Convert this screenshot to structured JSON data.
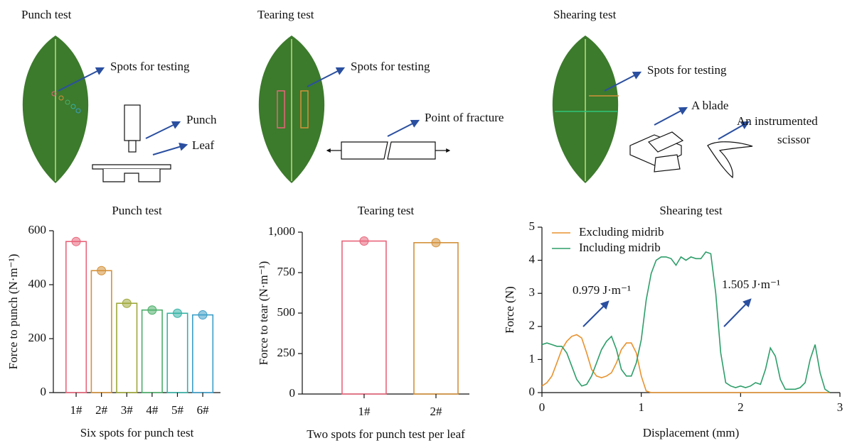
{
  "panels": [
    {
      "title": "Punch test",
      "labels": [
        "Spots for testing",
        "Punch",
        "Leaf"
      ]
    },
    {
      "title": "Tearing test",
      "labels": [
        "Spots for testing",
        "Point of fracture"
      ]
    },
    {
      "title": "Shearing test",
      "labels": [
        "Spots for testing",
        "A blade",
        "An instrumented",
        "scissor"
      ]
    }
  ],
  "chart_data": [
    {
      "type": "bar",
      "title": "Punch test",
      "xlabel": "Six spots for punch test",
      "ylabel": "Force to punch (N·m⁻¹)",
      "categories": [
        "1#",
        "2#",
        "3#",
        "4#",
        "5#",
        "6#"
      ],
      "values": [
        560,
        452,
        331,
        306,
        294,
        288
      ],
      "colors": [
        "#e8647a",
        "#d4913a",
        "#9ea83a",
        "#4cae6a",
        "#35b3a6",
        "#3c9ec8"
      ],
      "ylim": [
        0,
        600
      ],
      "yticks": [
        0,
        200,
        400,
        600
      ]
    },
    {
      "type": "bar",
      "title": "Tearing test",
      "xlabel": "Two spots for punch test per leaf",
      "ylabel": "Force to tear (N·m⁻¹)",
      "categories": [
        "1#",
        "2#"
      ],
      "values": [
        945,
        935
      ],
      "colors": [
        "#e8647a",
        "#d4913a"
      ],
      "ylim": [
        0,
        1000
      ],
      "yticks": [
        0,
        250,
        500,
        750,
        {
          "value": 1000,
          "label": "1,000"
        }
      ]
    },
    {
      "type": "line",
      "title": "Shearing test",
      "xlabel": "Displacement (mm)",
      "ylabel": "Force (N)",
      "legend": "upper left",
      "x": [
        0,
        0.05,
        0.1,
        0.15,
        0.2,
        0.25,
        0.3,
        0.35,
        0.4,
        0.45,
        0.5,
        0.55,
        0.6,
        0.65,
        0.7,
        0.75,
        0.8,
        0.85,
        0.9,
        0.95,
        1,
        1.05,
        1.1,
        1.15,
        1.2,
        1.25,
        1.3,
        1.35,
        1.4,
        1.45,
        1.5,
        1.55,
        1.6,
        1.65,
        1.7,
        1.75,
        1.8,
        1.85,
        1.9,
        1.95,
        2,
        2.05,
        2.1,
        2.15,
        2.2,
        2.25,
        2.3,
        2.35,
        2.4,
        2.45,
        2.5,
        2.55,
        2.6,
        2.65,
        2.7,
        2.75,
        2.8,
        2.85,
        2.9
      ],
      "series": [
        {
          "name": "Excluding midrib",
          "color": "#e8922e",
          "values": [
            0.2,
            0.3,
            0.5,
            0.9,
            1.3,
            1.55,
            1.7,
            1.75,
            1.65,
            1.2,
            0.7,
            0.5,
            0.45,
            0.5,
            0.6,
            0.9,
            1.3,
            1.5,
            1.5,
            1.2,
            0.5,
            0.05,
            0,
            0,
            0,
            0,
            0,
            0,
            0,
            0,
            0,
            0,
            0,
            0,
            0,
            0,
            0,
            0,
            0,
            0,
            0,
            0,
            0,
            0,
            0,
            0,
            0,
            0,
            0,
            0,
            0,
            0,
            0,
            0,
            0,
            0,
            0,
            0,
            0
          ]
        },
        {
          "name": "Including midrib",
          "color": "#2e9e6a",
          "values": [
            1.45,
            1.5,
            1.45,
            1.4,
            1.4,
            1.2,
            0.8,
            0.4,
            0.2,
            0.25,
            0.5,
            0.9,
            1.3,
            1.55,
            1.7,
            1.3,
            0.7,
            0.5,
            0.5,
            0.9,
            1.6,
            2.8,
            3.6,
            4.0,
            4.1,
            4.1,
            4.05,
            3.85,
            4.1,
            4.0,
            4.1,
            4.05,
            4.05,
            4.25,
            4.2,
            3.0,
            1.2,
            0.3,
            0.2,
            0.15,
            0.2,
            0.15,
            0.2,
            0.3,
            0.25,
            0.7,
            1.35,
            1.1,
            0.4,
            0.1,
            0.1,
            0.1,
            0.15,
            0.3,
            1.0,
            1.45,
            0.6,
            0.1,
            0
          ]
        }
      ],
      "annotations": [
        "0.979 J·m⁻¹",
        "1.505 J·m⁻¹"
      ],
      "xlim": [
        0,
        3
      ],
      "xticks": [
        0,
        1,
        2,
        3
      ],
      "ylim": [
        0,
        5
      ],
      "yticks": [
        0,
        1,
        2,
        3,
        4,
        5
      ]
    }
  ]
}
